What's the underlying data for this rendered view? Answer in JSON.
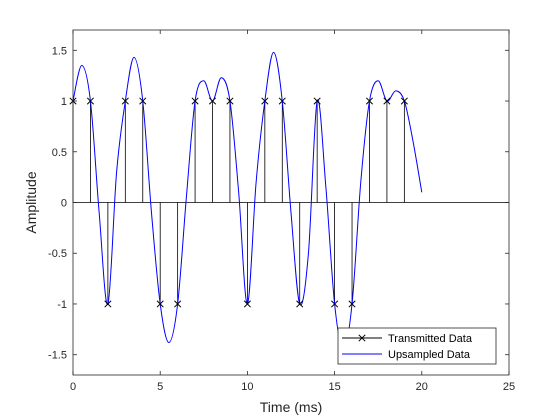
{
  "chart_data": {
    "type": "line",
    "xlabel": "Time (ms)",
    "ylabel": "Amplitude",
    "xlim": [
      0,
      25
    ],
    "ylim": [
      -1.7,
      1.7
    ],
    "xticks": [
      0,
      5,
      10,
      15,
      20,
      25
    ],
    "yticks": [
      -1.5,
      -1,
      -0.5,
      0,
      0.5,
      1,
      1.5
    ],
    "xtick_labels": [
      "0",
      "5",
      "10",
      "15",
      "20",
      "25"
    ],
    "ytick_labels": [
      "-1.5",
      "-1",
      "-0.5",
      "0",
      "0.5",
      "1",
      "1.5"
    ],
    "grid": false,
    "legend_position": "bottom-right",
    "series": [
      {
        "name": "Transmitted Data",
        "style": "stem-x",
        "color": "#000000",
        "x": [
          0,
          1,
          2,
          3,
          4,
          5,
          6,
          7,
          8,
          9,
          10,
          11,
          12,
          13,
          14,
          15,
          16,
          17,
          18,
          19
        ],
        "y": [
          1,
          1,
          -1,
          1,
          1,
          -1,
          -1,
          1,
          1,
          1,
          -1,
          1,
          1,
          -1,
          1,
          -1,
          -1,
          1,
          1,
          1
        ]
      },
      {
        "name": "Upsampled Data",
        "style": "line",
        "color": "#0000ff",
        "x": [
          0,
          0.5,
          1,
          1.5,
          2,
          2.5,
          3,
          3.5,
          4,
          4.5,
          5,
          5.5,
          6,
          6.5,
          7,
          7.5,
          8,
          8.5,
          9,
          9.5,
          10,
          10.5,
          11,
          11.5,
          12,
          12.5,
          13,
          13.5,
          14,
          14.5,
          15,
          15.5,
          16,
          16.5,
          17,
          17.5,
          18,
          18.5,
          19,
          19.5,
          20
        ],
        "y": [
          1.0,
          1.35,
          1.0,
          -0.1,
          -1.0,
          0.3,
          1.0,
          1.43,
          1.0,
          -0.1,
          -1.0,
          -1.38,
          -1.0,
          0.05,
          1.0,
          1.2,
          1.0,
          1.23,
          1.0,
          0.1,
          -1.0,
          0.2,
          1.0,
          1.48,
          1.0,
          -0.1,
          -1.0,
          -0.5,
          1.0,
          0.15,
          -1.0,
          -1.45,
          -1.0,
          0.2,
          1.0,
          1.2,
          1.0,
          1.1,
          1.0,
          0.6,
          0.1
        ]
      }
    ],
    "legend": [
      "Transmitted Data",
      "Upsampled Data"
    ]
  }
}
